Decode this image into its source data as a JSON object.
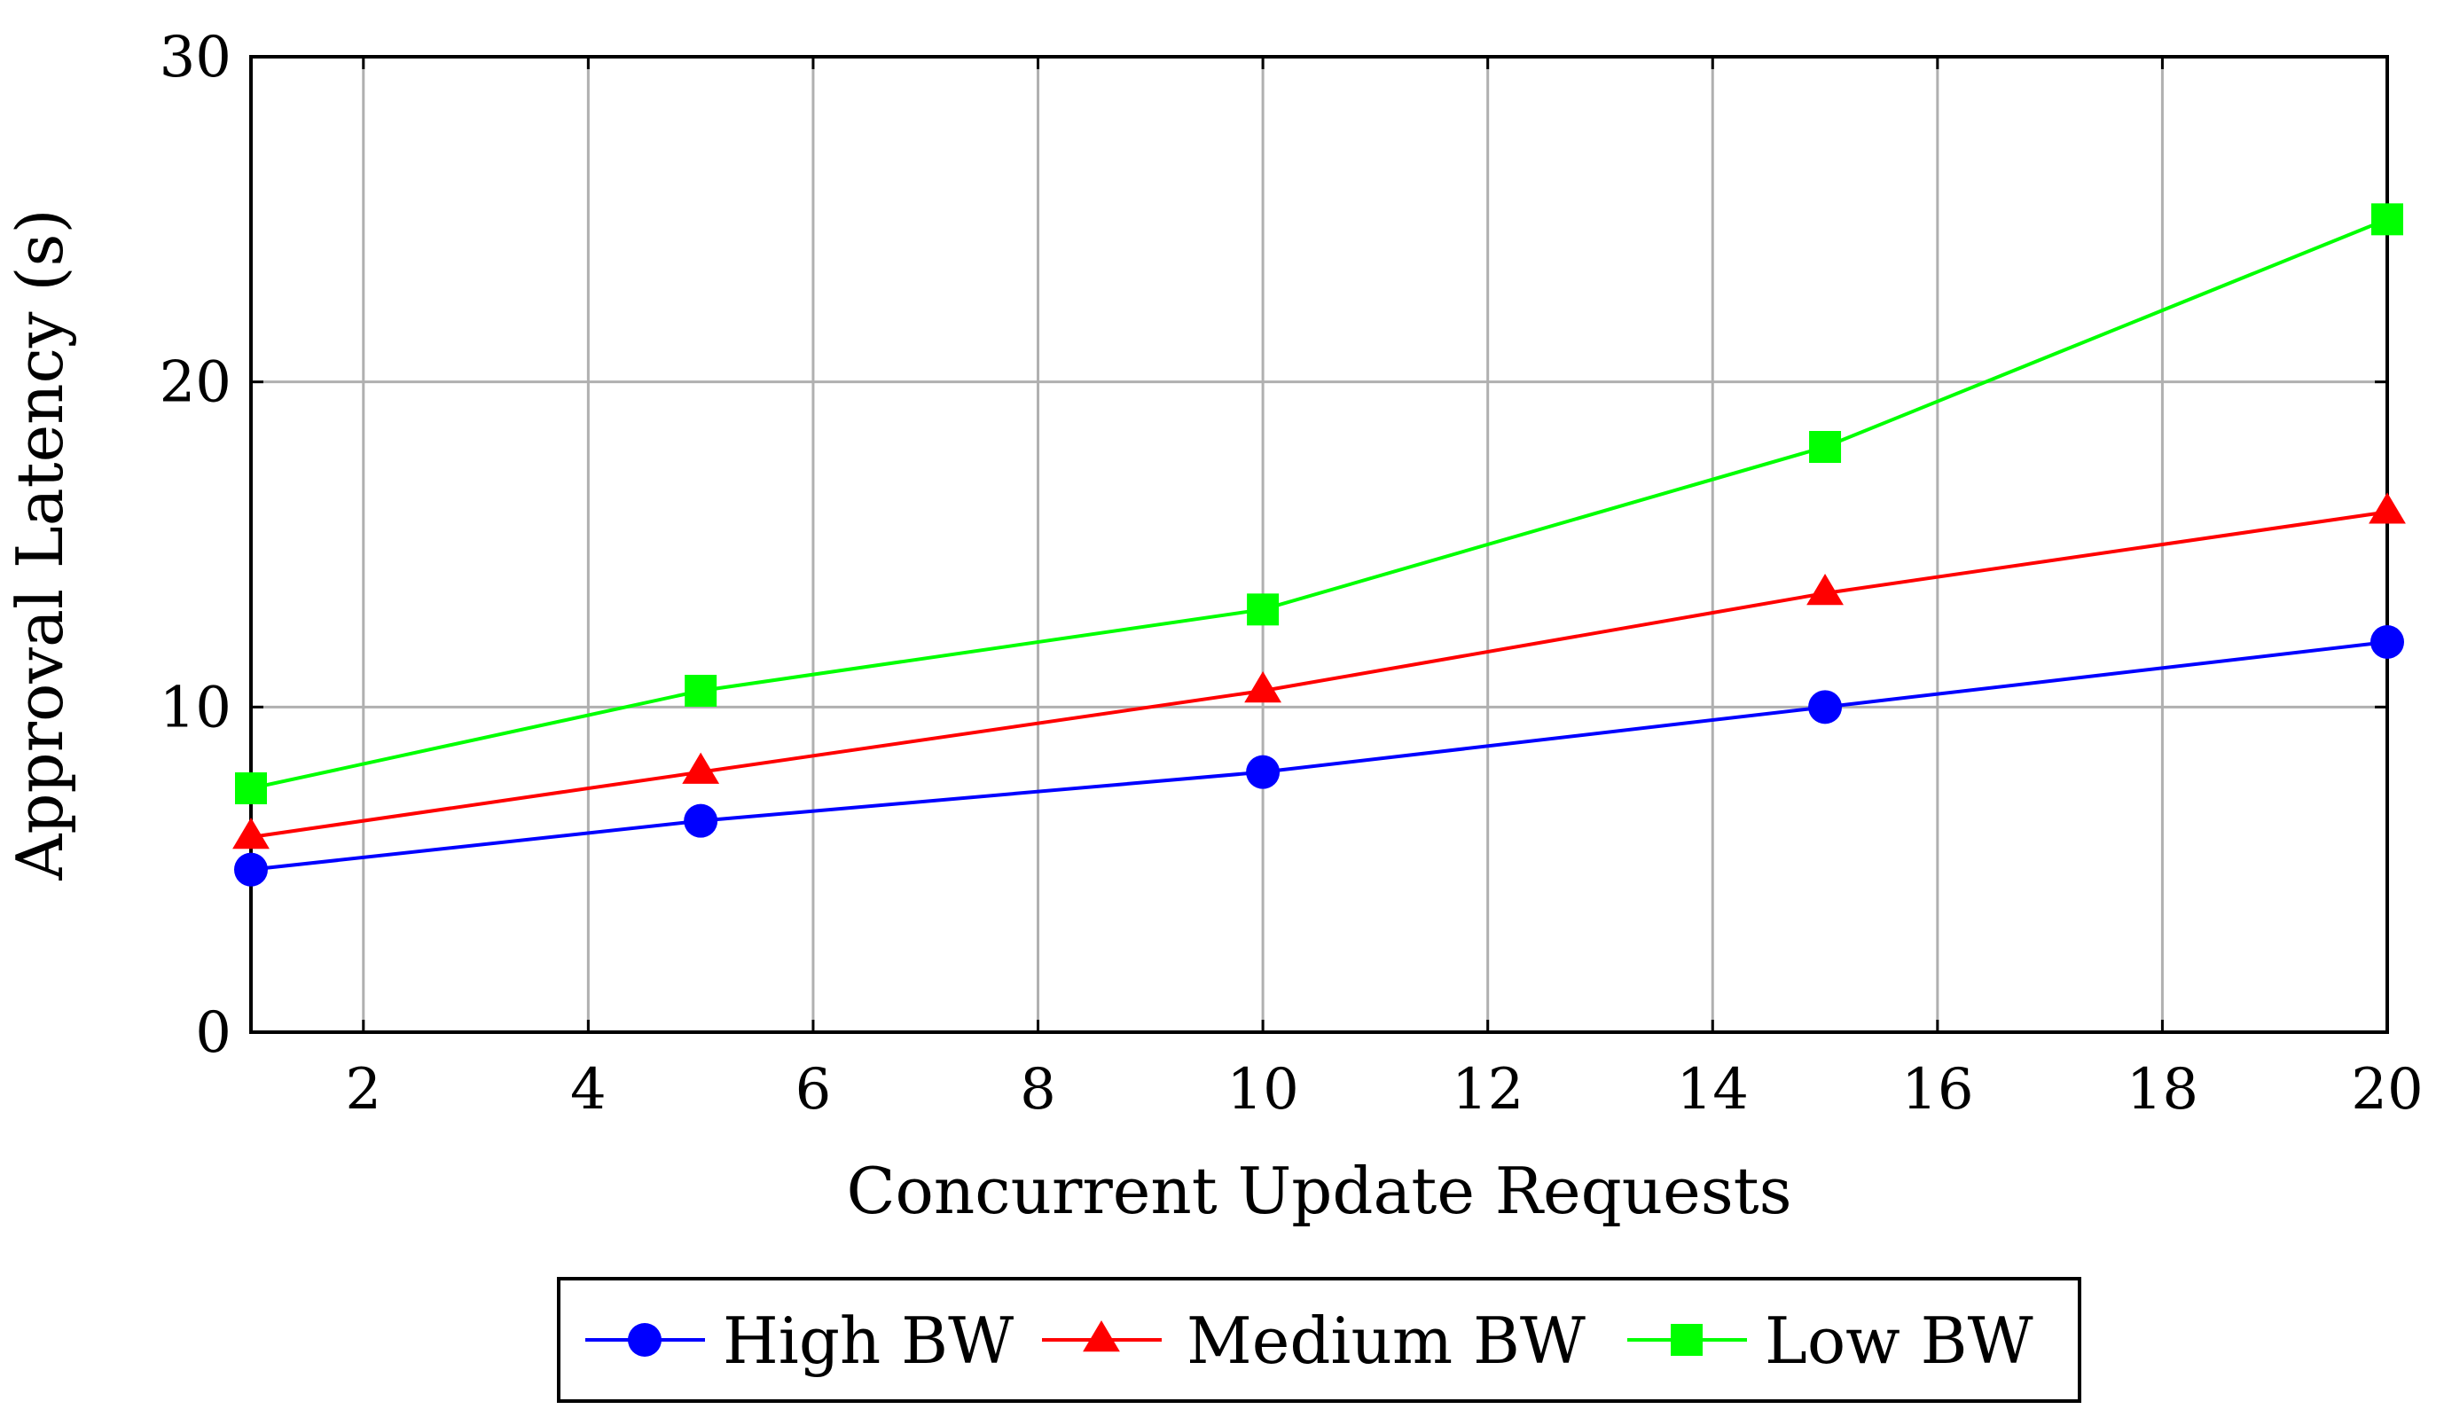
{
  "chart_data": {
    "type": "line",
    "title": "",
    "xlabel": "Concurrent Update Requests",
    "ylabel": "Approval Latency (s)",
    "xlim": [
      1,
      20
    ],
    "ylim": [
      0,
      30
    ],
    "xticks": [
      2,
      4,
      6,
      8,
      10,
      12,
      14,
      16,
      18,
      20
    ],
    "yticks": [
      0,
      10,
      20,
      30
    ],
    "grid": true,
    "legend_position": "bottom-center",
    "x": [
      1,
      5,
      10,
      15,
      20
    ],
    "series": [
      {
        "name": "High BW",
        "color": "#0000ff",
        "marker": "circle",
        "values": [
          5,
          6.5,
          8,
          10,
          12
        ]
      },
      {
        "name": "Medium BW",
        "color": "#ff0000",
        "marker": "triangle",
        "values": [
          6,
          8,
          10.5,
          13.5,
          16
        ]
      },
      {
        "name": "Low BW",
        "color": "#00ff00",
        "marker": "square",
        "values": [
          7.5,
          10.5,
          13,
          18,
          25
        ]
      }
    ]
  }
}
